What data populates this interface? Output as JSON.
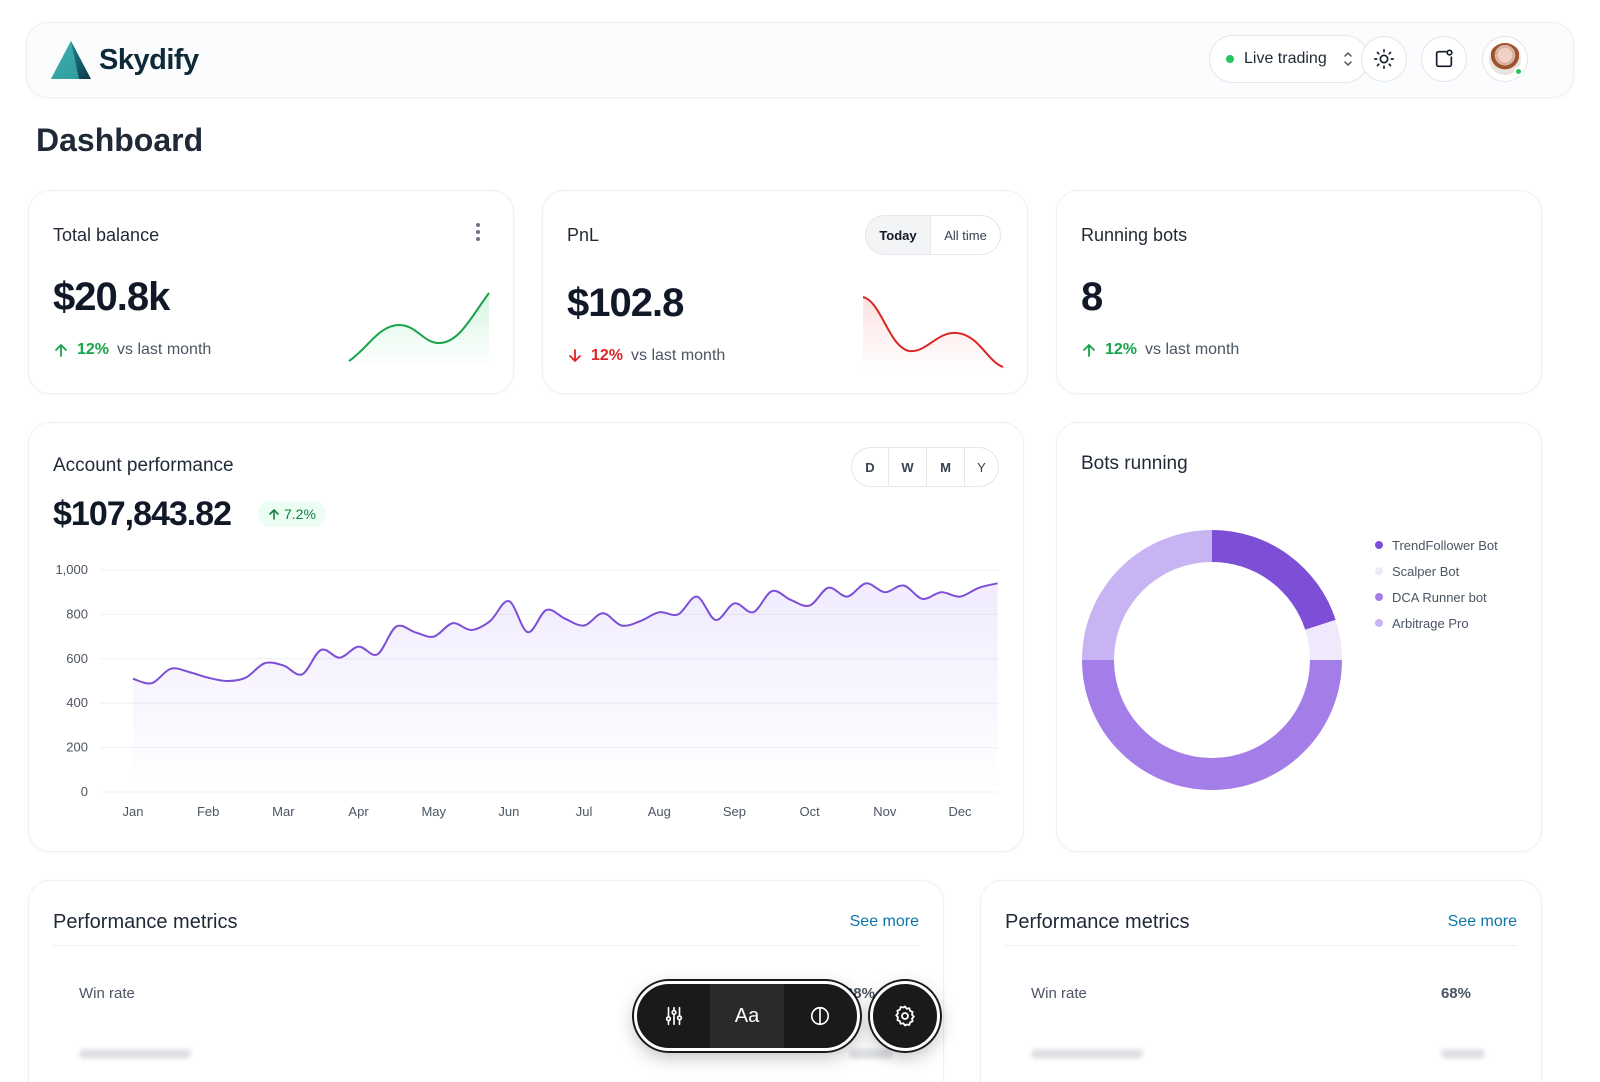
{
  "brand": {
    "name": "Skydify"
  },
  "header": {
    "trading_mode": "Live trading",
    "icons": [
      "sun-icon",
      "share-window-icon",
      "avatar"
    ]
  },
  "page": {
    "title": "Dashboard"
  },
  "cards": {
    "balance": {
      "title": "Total balance",
      "value": "$20.8k",
      "pct": "12%",
      "suffix": "vs last month",
      "trend": "up"
    },
    "pnl": {
      "title": "PnL",
      "value": "$102.8",
      "pct": "12%",
      "suffix": "vs last month",
      "trend": "down",
      "toggle": [
        "Today",
        "All time"
      ],
      "active_toggle": "Today"
    },
    "bots": {
      "title": "Running bots",
      "value": "8",
      "pct": "12%",
      "suffix": "vs last month",
      "trend": "up"
    }
  },
  "performance": {
    "title": "Account performance",
    "value": "$107,843.82",
    "badge": "7.2%",
    "ranges": [
      "D",
      "W",
      "M",
      "Y"
    ]
  },
  "chart_data": [
    {
      "type": "area",
      "title": "Account performance",
      "xlabel": "",
      "ylabel": "",
      "ylim": [
        0,
        1000
      ],
      "y_ticks": [
        "0",
        "200",
        "400",
        "600",
        "800",
        "1,000"
      ],
      "categories": [
        "Jan",
        "Feb",
        "Mar",
        "Apr",
        "May",
        "Jun",
        "Jul",
        "Aug",
        "Sep",
        "Oct",
        "Nov",
        "Dec"
      ],
      "x": [
        0,
        0.25,
        0.5,
        0.75,
        1,
        1.25,
        1.5,
        1.75,
        2,
        2.25,
        2.5,
        2.75,
        3,
        3.25,
        3.5,
        3.75,
        4,
        4.25,
        4.5,
        4.75,
        5,
        5.25,
        5.5,
        5.75,
        6,
        6.25,
        6.5,
        6.75,
        7,
        7.25,
        7.5,
        7.75,
        8,
        8.25,
        8.5,
        8.75,
        9,
        9.25,
        9.5,
        9.75,
        10,
        10.25,
        10.5,
        10.75,
        11,
        11.25,
        11.5
      ],
      "values": [
        510,
        490,
        555,
        540,
        515,
        500,
        515,
        580,
        570,
        530,
        640,
        605,
        655,
        620,
        745,
        720,
        700,
        760,
        730,
        770,
        860,
        720,
        820,
        780,
        750,
        805,
        750,
        770,
        810,
        800,
        880,
        775,
        850,
        810,
        905,
        865,
        840,
        920,
        880,
        940,
        900,
        930,
        870,
        900,
        880,
        920,
        940
      ],
      "grid": true,
      "legend": "none"
    },
    {
      "type": "pie",
      "title": "Bots running",
      "categories": [
        "TrendFollower Bot",
        "Scalper Bot",
        "DCA Runner bot",
        "Arbitrage Pro"
      ],
      "values": [
        20,
        5,
        50,
        25
      ],
      "colors": [
        "#7c4fd6",
        "#efe9fb",
        "#a47ee8",
        "#c8b4f2"
      ],
      "legend": "right"
    }
  ],
  "bots_panel": {
    "title": "Bots running",
    "legend": [
      {
        "label": "TrendFollower Bot",
        "color": "#7c4fd6"
      },
      {
        "label": "Scalper Bot",
        "color": "#efe9fb"
      },
      {
        "label": "DCA Runner bot",
        "color": "#a47ee8"
      },
      {
        "label": "Arbitrage Pro",
        "color": "#c8b4f2"
      }
    ]
  },
  "metrics": [
    {
      "title": "Performance metrics",
      "link": "See more",
      "row_label": "Win rate",
      "row_value": "68%"
    },
    {
      "title": "Performance metrics",
      "link": "See more",
      "row_label": "Win rate",
      "row_value": "68%"
    }
  ],
  "toolbar": {
    "text_button": "Aa"
  }
}
